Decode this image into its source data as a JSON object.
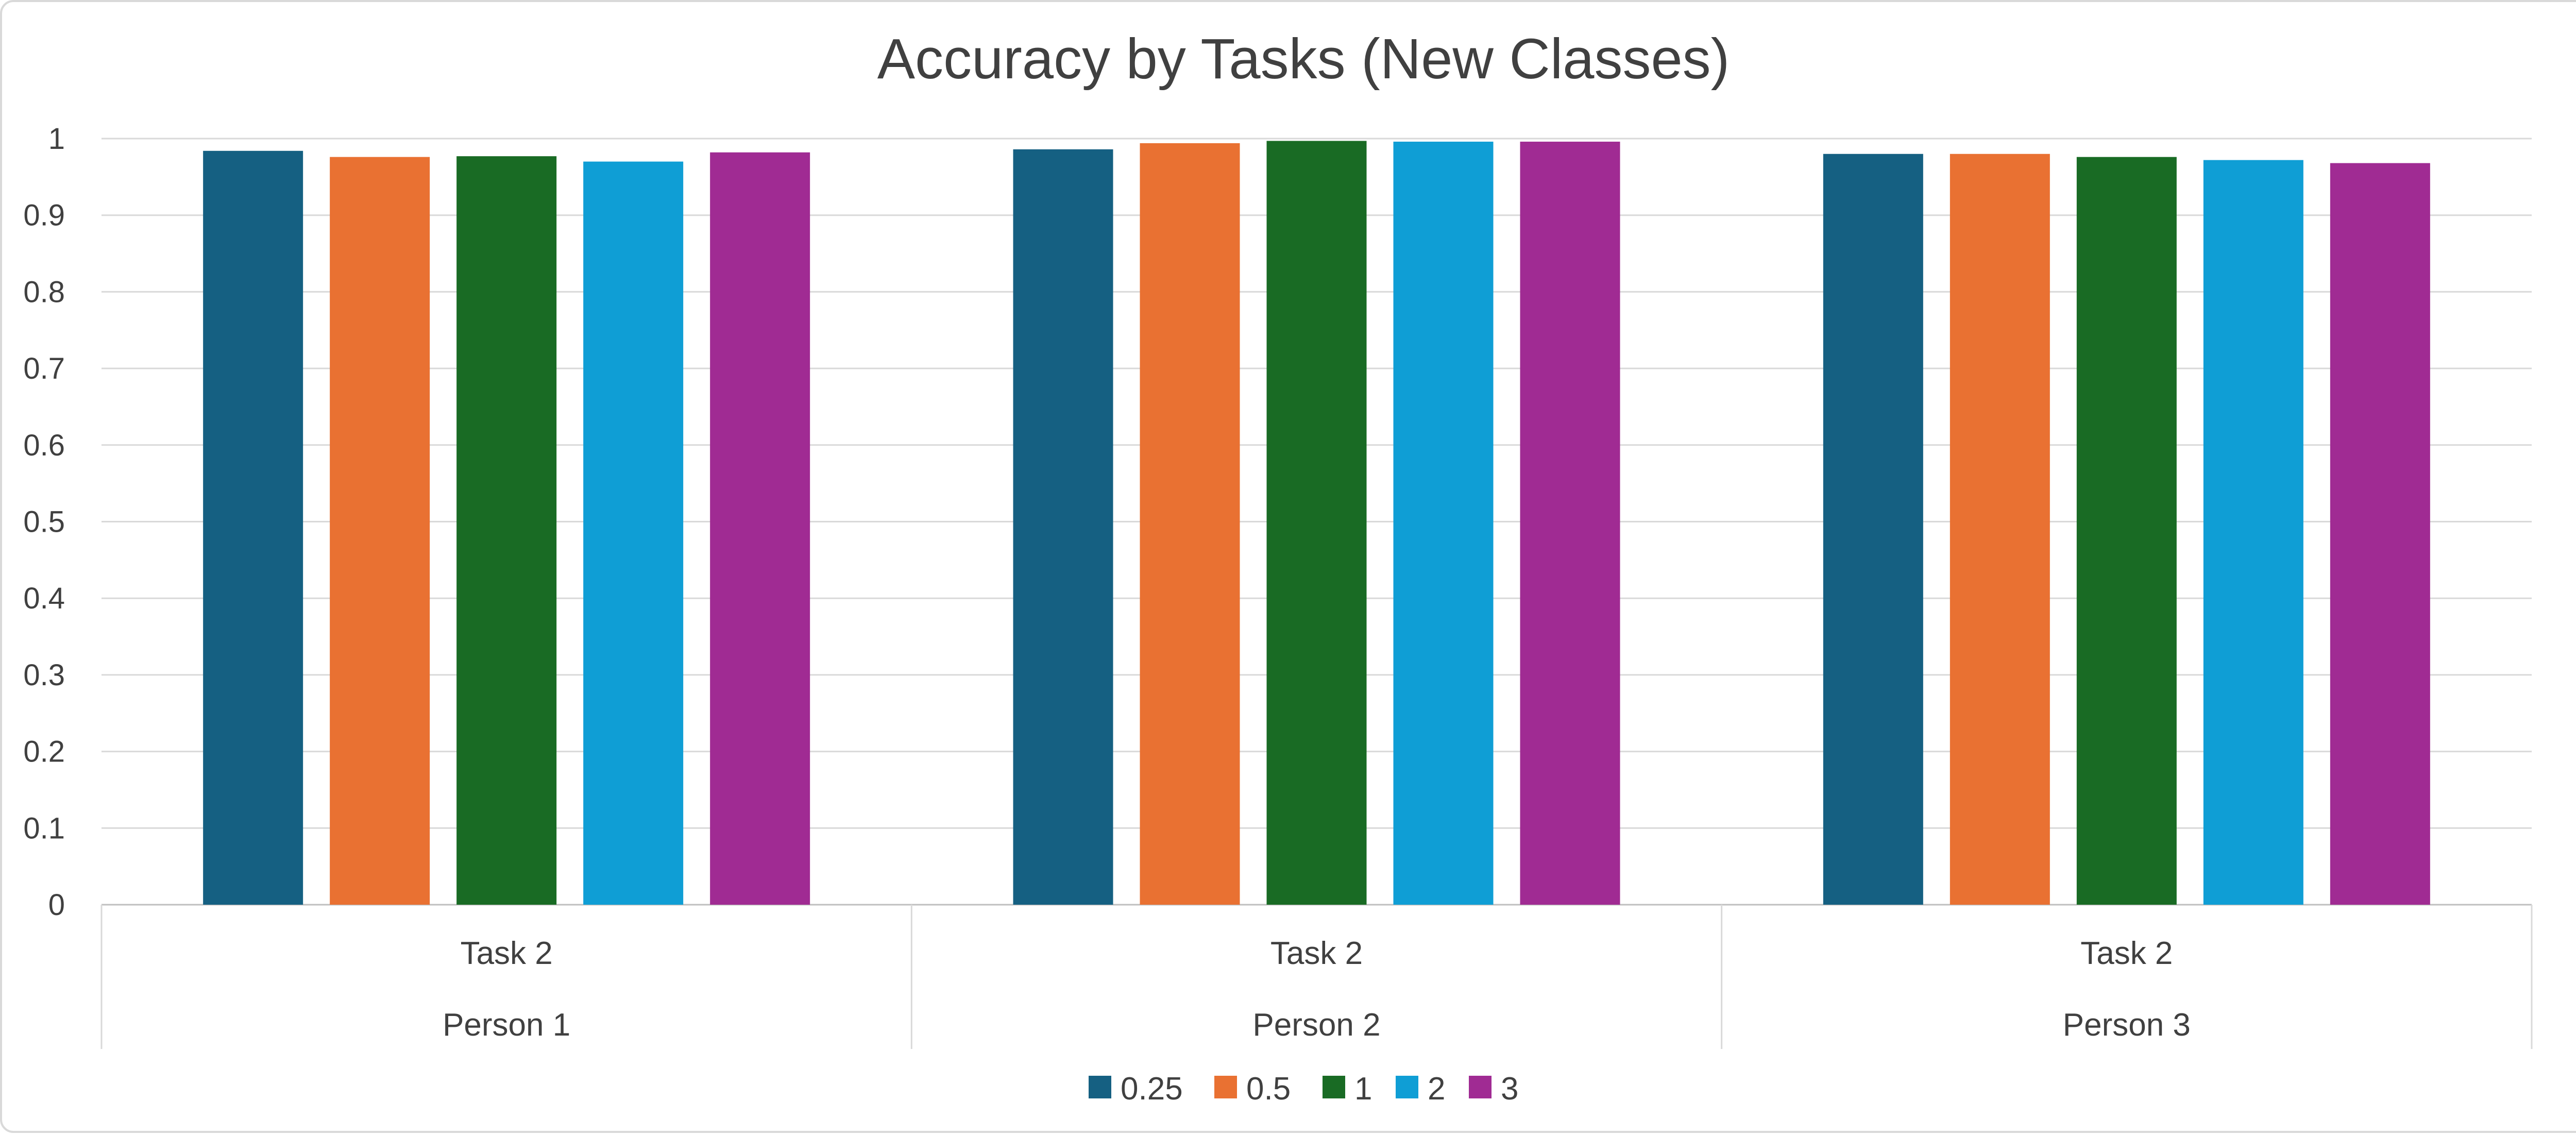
{
  "chart_data": {
    "type": "bar",
    "title": "Accuracy by Tasks (New Classes)",
    "categories": [
      {
        "task": "Task 2",
        "group": "Person 1"
      },
      {
        "task": "Task 2",
        "group": "Person 2"
      },
      {
        "task": "Task 2",
        "group": "Person 3"
      }
    ],
    "series": [
      {
        "name": "0.25",
        "color": "#156082",
        "values": [
          0.984,
          0.986,
          0.98
        ]
      },
      {
        "name": "0.5",
        "color": "#E97132",
        "values": [
          0.976,
          0.994,
          0.98
        ]
      },
      {
        "name": "1",
        "color": "#196B24",
        "values": [
          0.977,
          0.997,
          0.976
        ]
      },
      {
        "name": "2",
        "color": "#0F9ED5",
        "values": [
          0.97,
          0.996,
          0.972
        ]
      },
      {
        "name": "3",
        "color": "#A02B93",
        "values": [
          0.982,
          0.996,
          0.968
        ]
      }
    ],
    "ylim": [
      0,
      1
    ],
    "yticks": [
      "0",
      "0.1",
      "0.2",
      "0.3",
      "0.4",
      "0.5",
      "0.6",
      "0.7",
      "0.8",
      "0.9",
      "1"
    ],
    "grid": true,
    "legend_position": "bottom"
  }
}
